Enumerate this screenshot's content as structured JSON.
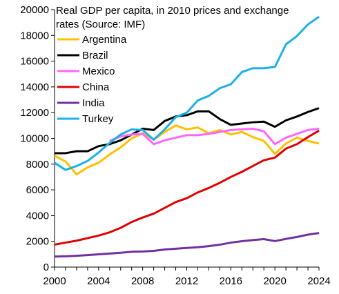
{
  "chart_data": {
    "type": "line",
    "title": "Real GDP per capita, in 2010 prices and exchange rates (Source: IMF)",
    "title_lines": [
      "Real GDP per capita, in 2010 prices and exchange",
      "rates (Source: IMF)"
    ],
    "xlabel": "",
    "ylabel": "",
    "xlim": [
      2000,
      2024
    ],
    "ylim": [
      0,
      20000
    ],
    "x_ticks": [
      2000,
      2004,
      2008,
      2012,
      2016,
      2020,
      2024
    ],
    "y_ticks": [
      0,
      2000,
      4000,
      6000,
      8000,
      10000,
      12000,
      14000,
      16000,
      18000,
      20000
    ],
    "grid": false,
    "legend_position": "top-left",
    "x": [
      2000,
      2001,
      2002,
      2003,
      2004,
      2005,
      2006,
      2007,
      2008,
      2009,
      2010,
      2011,
      2012,
      2013,
      2014,
      2015,
      2016,
      2017,
      2018,
      2019,
      2020,
      2021,
      2022,
      2023,
      2024
    ],
    "series": [
      {
        "name": "Argentina",
        "color": "#FFC000",
        "values": [
          8650,
          8200,
          7200,
          7750,
          8100,
          8750,
          9300,
          10000,
          10400,
          9900,
          10500,
          11000,
          10700,
          10850,
          10400,
          10650,
          10300,
          10500,
          10100,
          9800,
          8800,
          9600,
          10050,
          9800,
          9600
        ]
      },
      {
        "name": "Brazil",
        "color": "#000000",
        "values": [
          8850,
          8850,
          9000,
          9000,
          9400,
          9550,
          9850,
          10300,
          10750,
          10650,
          11350,
          11700,
          11800,
          12100,
          12100,
          11500,
          11050,
          11150,
          11250,
          11300,
          10900,
          11400,
          11700,
          12050,
          12350
        ]
      },
      {
        "name": "Mexico",
        "color": "#FF66FF",
        "values": [
          null,
          null,
          null,
          null,
          null,
          9800,
          10150,
          10300,
          10350,
          9550,
          9850,
          10050,
          10250,
          10250,
          10350,
          10500,
          10650,
          10700,
          10750,
          10550,
          9550,
          10050,
          10350,
          10650,
          10750
        ]
      },
      {
        "name": "China",
        "color": "#E00000",
        "values": [
          1750,
          1900,
          2050,
          2250,
          2450,
          2700,
          3050,
          3500,
          3850,
          4150,
          4600,
          5050,
          5350,
          5800,
          6150,
          6550,
          7000,
          7400,
          7850,
          8300,
          8500,
          9200,
          9550,
          10100,
          10600
        ]
      },
      {
        "name": "India",
        "color": "#7030A0",
        "values": [
          820,
          840,
          880,
          930,
          990,
          1050,
          1110,
          1190,
          1210,
          1260,
          1370,
          1430,
          1490,
          1540,
          1630,
          1740,
          1900,
          2010,
          2100,
          2170,
          2020,
          2190,
          2340,
          2520,
          2650
        ]
      },
      {
        "name": "Turkey",
        "color": "#1AB0E8",
        "values": [
          8100,
          7550,
          7850,
          8250,
          8900,
          9650,
          10300,
          10700,
          10650,
          9900,
          10700,
          11650,
          12000,
          12950,
          13300,
          13900,
          14200,
          15150,
          15450,
          15450,
          15550,
          17300,
          17950,
          18850,
          19450
        ]
      }
    ]
  }
}
